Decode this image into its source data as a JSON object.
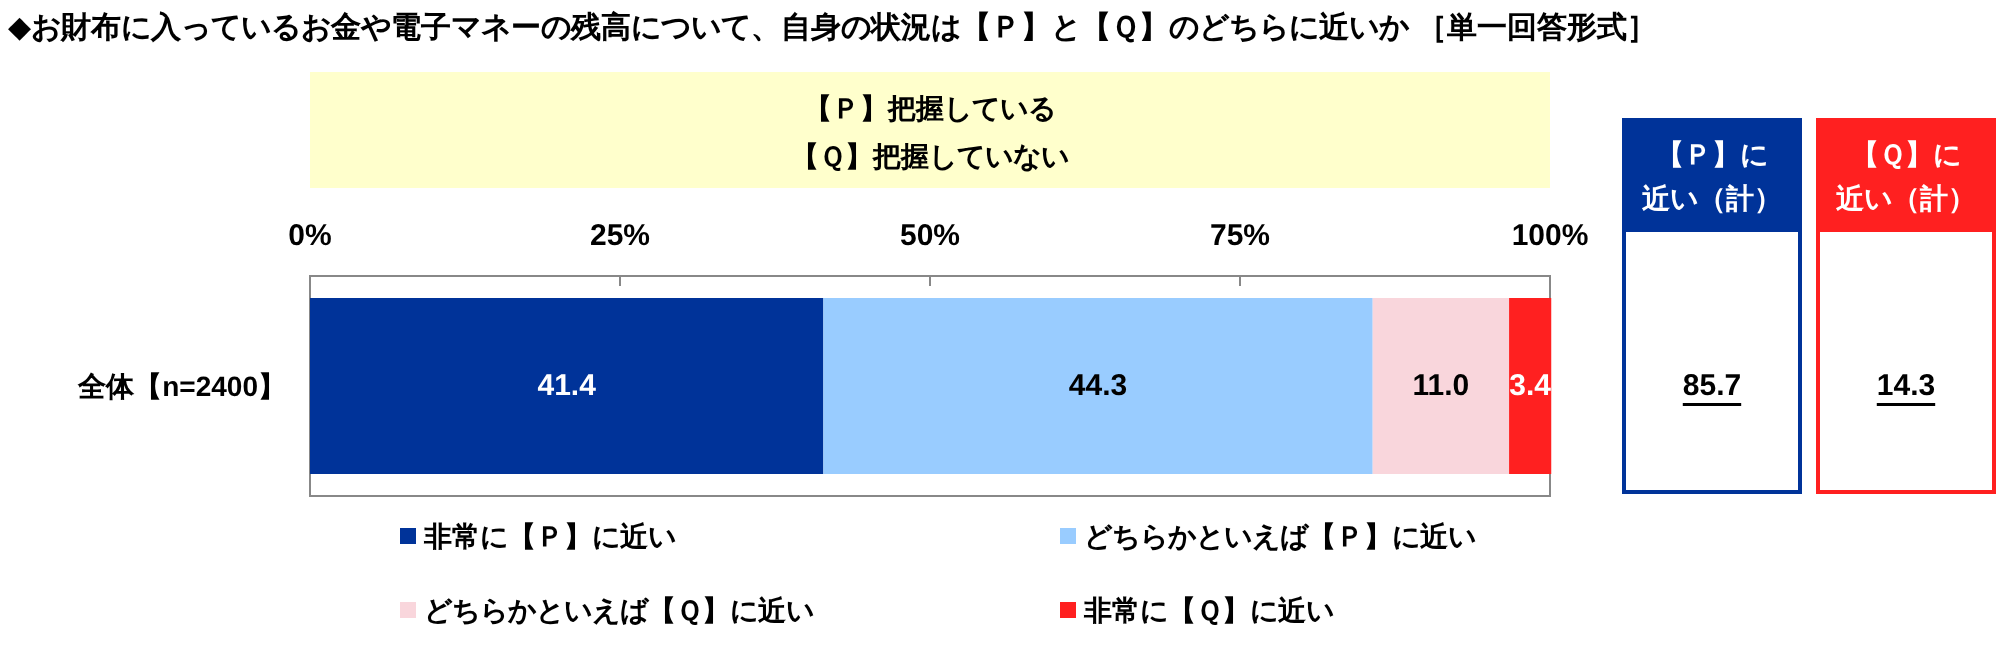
{
  "chart_data": {
    "type": "bar",
    "orientation": "horizontal",
    "stacked": true,
    "title": "◆お財布に入っているお金や電子マネーの残高について、自身の状況は【Ｐ】と【Ｑ】のどちらに近いか ［単一回答形式］",
    "categories": [
      "全体【n=2400】"
    ],
    "series": [
      {
        "name": "非常に【Ｐ】に近い",
        "color": "#003399",
        "values": [
          41.4
        ],
        "value_labels": [
          "41.4"
        ]
      },
      {
        "name": "どちらかといえば【Ｐ】に近い",
        "color": "#99ccff",
        "values": [
          44.3
        ],
        "value_labels": [
          "44.3"
        ]
      },
      {
        "name": "どちらかといえば【Ｑ】に近い",
        "color": "#f9d6dc",
        "values": [
          11.0
        ],
        "value_labels": [
          "11.0"
        ]
      },
      {
        "name": "非常に【Ｑ】に近い",
        "color": "#ff2020",
        "values": [
          3.4
        ],
        "value_labels": [
          "3.4"
        ]
      }
    ],
    "xlim": [
      0,
      100
    ],
    "xticks": [
      {
        "value": 0,
        "label": "0%"
      },
      {
        "value": 25,
        "label": "25%"
      },
      {
        "value": 50,
        "label": "50%"
      },
      {
        "value": 75,
        "label": "75%"
      },
      {
        "value": 100,
        "label": "100%"
      }
    ],
    "legend": "bottom",
    "annotations": [
      "【Ｐ】把握している",
      "【Ｑ】把握していない",
      "【Ｐ】に近い（計）",
      "85.7",
      "【Ｑ】に近い（計）",
      "14.3"
    ]
  }
}
